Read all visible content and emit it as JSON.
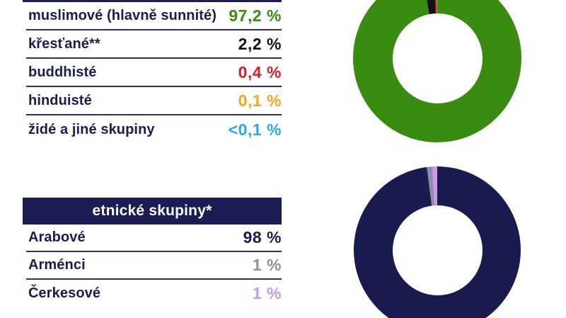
{
  "tables": {
    "religions": {
      "rows": [
        {
          "label": "muslimové (hlavně sunnité)",
          "value": "97,2 %",
          "color": "#3a8b11"
        },
        {
          "label": "křesťané**",
          "value": "2,2 %",
          "color": "#121212"
        },
        {
          "label": "buddhisté",
          "value": "0,4 %",
          "color": "#d42027"
        },
        {
          "label": "hinduisté",
          "value": "0,1 %",
          "color": "#f9a519"
        },
        {
          "label": "židé a jiné skupiny",
          "value": "<0,1 %",
          "color": "#2fa9e1"
        }
      ]
    },
    "ethnic": {
      "header": "etnické skupiny*",
      "rows": [
        {
          "label": "Arabové",
          "value": "98 %",
          "color": "#1b1c4f"
        },
        {
          "label": "Arménci",
          "value": "1 %",
          "color": "#8d8fa6"
        },
        {
          "label": "Čerkesové",
          "value": "1 %",
          "color": "#c89ae9"
        }
      ]
    }
  },
  "colors": {
    "navy": "#1b1c52",
    "divider": "#2d3163",
    "background": "#ffffff"
  },
  "chart_data": [
    {
      "type": "pie",
      "variant": "donut",
      "start_angle_deg": 0,
      "direction": "clockwise",
      "series": [
        {
          "name": "muslimové (hlavně sunnité)",
          "value": 97.2,
          "color": "#3a8b11"
        },
        {
          "name": "křesťané**",
          "value": 2.2,
          "color": "#121212"
        },
        {
          "name": "buddhisté",
          "value": 0.4,
          "color": "#d42027"
        },
        {
          "name": "hinduisté",
          "value": 0.1,
          "color": "#f9a519"
        },
        {
          "name": "židé a jiné skupiny",
          "value": 0.1,
          "color": "#2fa9e1"
        }
      ]
    },
    {
      "type": "pie",
      "variant": "donut",
      "start_angle_deg": 0,
      "direction": "clockwise",
      "series": [
        {
          "name": "Arabové",
          "value": 98,
          "color": "#191b4f"
        },
        {
          "name": "Arménci",
          "value": 1,
          "color": "#8d8fa6"
        },
        {
          "name": "Čerkesové",
          "value": 1,
          "color": "#c89ae9"
        }
      ]
    }
  ]
}
